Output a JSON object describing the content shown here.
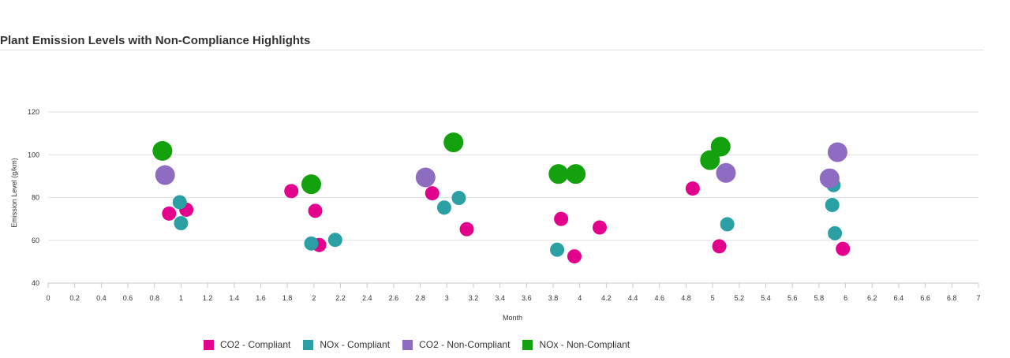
{
  "chart_data": {
    "type": "scatter",
    "title": "Plant Emission Levels with Non-Compliance Highlights",
    "xlabel": "Month",
    "ylabel": "Emission Level (g/km)",
    "xlim": [
      0,
      7
    ],
    "ylim": [
      40,
      120
    ],
    "x_ticks": [
      "0",
      "0.2",
      "0.4",
      "0.6",
      "0.8",
      "1",
      "1.2",
      "1.4",
      "1.6",
      "1.8",
      "2",
      "2.2",
      "2.4",
      "2.6",
      "2.8",
      "3",
      "3.2",
      "3.4",
      "3.6",
      "3.8",
      "4",
      "4.2",
      "4.4",
      "4.6",
      "4.8",
      "5",
      "5.2",
      "5.4",
      "5.6",
      "5.8",
      "6",
      "6.2",
      "6.4",
      "6.6",
      "6.8",
      "7"
    ],
    "y_ticks": [
      "40",
      "60",
      "80",
      "100",
      "120"
    ],
    "grid": "horizontal",
    "legend_position": "bottom",
    "series": [
      {
        "name": "CO2 - Compliant",
        "color": "#e3008c",
        "points": [
          {
            "x": 0.91,
            "y": 72.5
          },
          {
            "x": 1.04,
            "y": 74.3
          },
          {
            "x": 1.83,
            "y": 83.0
          },
          {
            "x": 2.01,
            "y": 73.8
          },
          {
            "x": 2.04,
            "y": 57.8
          },
          {
            "x": 2.89,
            "y": 82.0
          },
          {
            "x": 3.15,
            "y": 65.2
          },
          {
            "x": 3.86,
            "y": 70.0
          },
          {
            "x": 3.96,
            "y": 52.5
          },
          {
            "x": 4.15,
            "y": 66.0
          },
          {
            "x": 4.85,
            "y": 84.2
          },
          {
            "x": 5.05,
            "y": 57.2
          },
          {
            "x": 5.98,
            "y": 56.0
          }
        ]
      },
      {
        "name": "NOx - Compliant",
        "color": "#2aa0a4",
        "points": [
          {
            "x": 0.99,
            "y": 77.8
          },
          {
            "x": 1.0,
            "y": 68.0
          },
          {
            "x": 1.98,
            "y": 58.5
          },
          {
            "x": 2.16,
            "y": 60.2
          },
          {
            "x": 2.98,
            "y": 75.3
          },
          {
            "x": 3.09,
            "y": 79.8
          },
          {
            "x": 3.83,
            "y": 55.6
          },
          {
            "x": 5.11,
            "y": 67.5
          },
          {
            "x": 5.9,
            "y": 76.5
          },
          {
            "x": 5.91,
            "y": 85.8
          },
          {
            "x": 5.92,
            "y": 63.3
          }
        ]
      },
      {
        "name": "CO2 - Non-Compliant",
        "color": "#8e6cc1",
        "points": [
          {
            "x": 0.88,
            "y": 90.5
          },
          {
            "x": 2.84,
            "y": 89.4
          },
          {
            "x": 5.1,
            "y": 91.5
          },
          {
            "x": 5.88,
            "y": 89.0
          },
          {
            "x": 5.94,
            "y": 101.2
          }
        ]
      },
      {
        "name": "NOx - Non-Compliant",
        "color": "#13a10e",
        "points": [
          {
            "x": 0.86,
            "y": 101.8
          },
          {
            "x": 1.98,
            "y": 86.2
          },
          {
            "x": 3.05,
            "y": 105.8
          },
          {
            "x": 3.84,
            "y": 91.0
          },
          {
            "x": 3.97,
            "y": 91.0
          },
          {
            "x": 4.98,
            "y": 97.5
          },
          {
            "x": 5.06,
            "y": 103.8
          }
        ]
      }
    ]
  }
}
